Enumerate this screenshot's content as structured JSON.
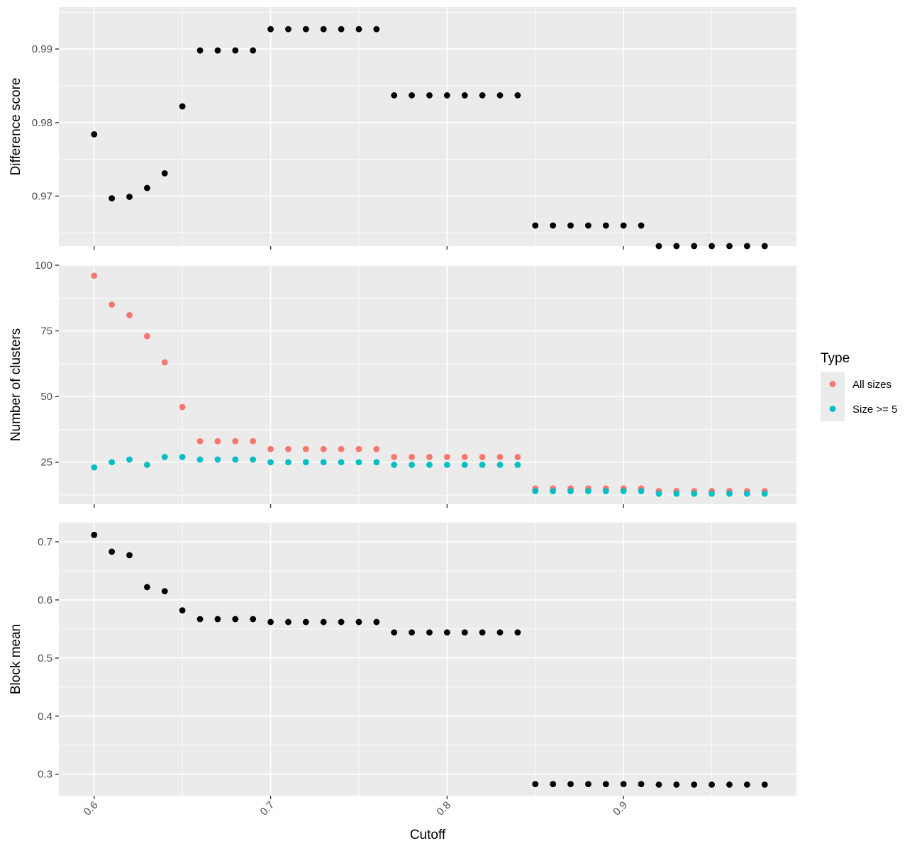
{
  "chart_data": {
    "type": "scatter",
    "xlabel": "Cutoff",
    "x_ticks": [
      0.6,
      0.7,
      0.8,
      0.9
    ],
    "x_tick_labels": [
      "0.6",
      "0.7",
      "0.8",
      "0.9"
    ],
    "xlim": [
      0.58,
      0.998
    ],
    "x": [
      0.6,
      0.61,
      0.62,
      0.63,
      0.64,
      0.65,
      0.66,
      0.67,
      0.68,
      0.69,
      0.7,
      0.71,
      0.72,
      0.73,
      0.74,
      0.75,
      0.76,
      0.77,
      0.78,
      0.79,
      0.8,
      0.81,
      0.82,
      0.83,
      0.84,
      0.85,
      0.86,
      0.87,
      0.88,
      0.89,
      0.9,
      0.91,
      0.92,
      0.93,
      0.94,
      0.95,
      0.96,
      0.97,
      0.98
    ],
    "grid": true,
    "legend": {
      "title": "Type",
      "position": "right",
      "entries": [
        {
          "label": "All sizes",
          "color": "#f8766d"
        },
        {
          "label": "Size >= 5",
          "color": "#00bfc4"
        }
      ]
    },
    "panels": [
      {
        "ylabel": "Difference score",
        "ylim": [
          0.9632,
          0.9957
        ],
        "y_ticks": [
          0.97,
          0.98,
          0.99
        ],
        "y_tick_labels": [
          "0.97",
          "0.98",
          "0.99"
        ],
        "series": [
          {
            "color": "#000000",
            "values": [
              0.9784,
              0.9697,
              0.9699,
              0.9711,
              0.9731,
              0.9822,
              0.9898,
              0.9898,
              0.9898,
              0.9898,
              0.9927,
              0.9927,
              0.9927,
              0.9927,
              0.9927,
              0.9927,
              0.9927,
              0.9837,
              0.9837,
              0.9837,
              0.9837,
              0.9837,
              0.9837,
              0.9837,
              0.9837,
              0.966,
              0.966,
              0.966,
              0.966,
              0.966,
              0.966,
              0.966,
              0.9632,
              0.9632,
              0.9632,
              0.9632,
              0.9632,
              0.9632,
              0.9632
            ]
          }
        ]
      },
      {
        "ylabel": "Number of clusters",
        "ylim": [
          9,
          100
        ],
        "y_ticks": [
          25,
          50,
          75,
          100
        ],
        "y_tick_labels": [
          "25",
          "50",
          "75",
          "100"
        ],
        "series": [
          {
            "name": "All sizes",
            "color": "#f8766d",
            "values": [
              96,
              85,
              81,
              73,
              63,
              46,
              33,
              33,
              33,
              33,
              30,
              30,
              30,
              30,
              30,
              30,
              30,
              27,
              27,
              27,
              27,
              27,
              27,
              27,
              27,
              15,
              15,
              15,
              15,
              15,
              15,
              15,
              14,
              14,
              14,
              14,
              14,
              14,
              14
            ]
          },
          {
            "name": "Size >= 5",
            "color": "#00bfc4",
            "values": [
              23,
              25,
              26,
              24,
              27,
              27,
              26,
              26,
              26,
              26,
              25,
              25,
              25,
              25,
              25,
              25,
              25,
              24,
              24,
              24,
              24,
              24,
              24,
              24,
              24,
              14,
              14,
              14,
              14,
              14,
              14,
              14,
              13,
              13,
              13,
              13,
              13,
              13,
              13
            ]
          }
        ]
      },
      {
        "ylabel": "Block mean",
        "ylim": [
          0.263,
          0.733
        ],
        "y_ticks": [
          0.3,
          0.4,
          0.5,
          0.6,
          0.7
        ],
        "y_tick_labels": [
          "0.3",
          "0.4",
          "0.5",
          "0.6",
          "0.7"
        ],
        "series": [
          {
            "color": "#000000",
            "values": [
              0.712,
              0.683,
              0.677,
              0.622,
              0.615,
              0.582,
              0.567,
              0.567,
              0.567,
              0.567,
              0.562,
              0.562,
              0.562,
              0.562,
              0.562,
              0.562,
              0.562,
              0.544,
              0.544,
              0.544,
              0.544,
              0.544,
              0.544,
              0.544,
              0.544,
              0.283,
              0.283,
              0.283,
              0.283,
              0.283,
              0.283,
              0.283,
              0.282,
              0.282,
              0.282,
              0.282,
              0.282,
              0.282,
              0.282
            ]
          }
        ]
      }
    ]
  }
}
